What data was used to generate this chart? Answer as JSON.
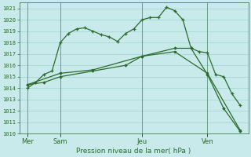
{
  "background_color": "#c8eaea",
  "plot_bg_color": "#c8eaea",
  "grid_color": "#99cccc",
  "line_color": "#2d6a2d",
  "title": "Pression niveau de la mer( hPa )",
  "ylim": [
    1010,
    1021.5
  ],
  "yticks": [
    1010,
    1011,
    1012,
    1013,
    1014,
    1015,
    1016,
    1017,
    1018,
    1019,
    1020,
    1021
  ],
  "day_labels": [
    "Mer",
    "Sam",
    "Jeu",
    "Ven"
  ],
  "day_positions": [
    1,
    5,
    15,
    23
  ],
  "xlim": [
    0,
    28
  ],
  "line1_x": [
    1,
    2,
    3,
    4,
    5,
    6,
    7,
    8,
    9,
    10,
    11,
    12,
    13,
    14,
    15,
    16,
    17,
    18,
    19,
    20,
    21,
    22,
    23,
    24,
    25,
    26,
    27
  ],
  "line1_y": [
    1014.0,
    1014.5,
    1015.2,
    1015.5,
    1018.0,
    1018.8,
    1019.2,
    1019.3,
    1019.0,
    1018.7,
    1018.5,
    1018.1,
    1018.8,
    1019.2,
    1020.0,
    1020.2,
    1020.2,
    1021.1,
    1020.8,
    1020.0,
    1017.5,
    1017.2,
    1017.1,
    1015.2,
    1015.0,
    1013.5,
    1012.5
  ],
  "line2_x": [
    1,
    5,
    9,
    15,
    19,
    23,
    27
  ],
  "line2_y": [
    1014.3,
    1015.3,
    1015.6,
    1016.8,
    1017.2,
    1015.3,
    1010.3
  ],
  "line3_x": [
    1,
    3,
    5,
    9,
    13,
    15,
    19,
    21,
    23,
    25,
    27
  ],
  "line3_y": [
    1014.3,
    1014.5,
    1015.0,
    1015.5,
    1016.0,
    1016.8,
    1017.5,
    1017.5,
    1015.2,
    1012.2,
    1010.2
  ]
}
